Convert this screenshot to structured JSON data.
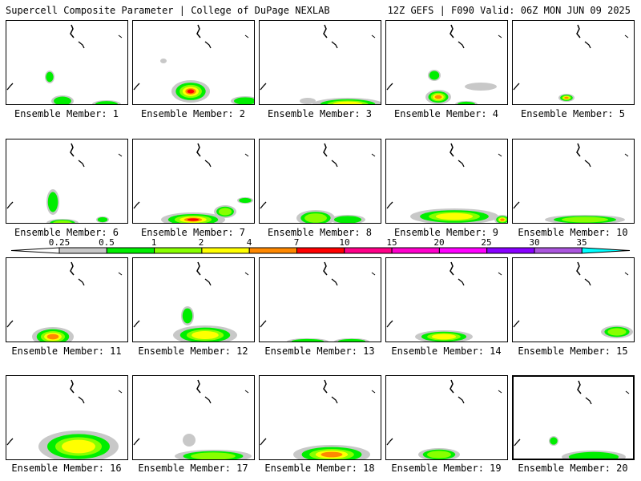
{
  "header": {
    "left": "Supercell Composite Parameter | College of DuPage NEXLAB",
    "right": "12Z GEFS | F090 Valid: 06Z MON JUN 09 2025"
  },
  "legend": {
    "ticks": [
      "0.25",
      "0.5",
      "1",
      "2",
      "4",
      "7",
      "10",
      "15",
      "20",
      "25",
      "30",
      "35"
    ],
    "colors": [
      "#c8c8c8",
      "#00ee00",
      "#88ff00",
      "#ffff00",
      "#ff8800",
      "#ff0000",
      "#ff0088",
      "#ff00cc",
      "#ff00ff",
      "#8800ff",
      "#aa55dd",
      "#00ffff"
    ],
    "under_color": "#ffffff",
    "over_color": "#00ffff"
  },
  "members": [
    {
      "label": "Ensemble Member: 1",
      "selected": false
    },
    {
      "label": "Ensemble Member: 2",
      "selected": false
    },
    {
      "label": "Ensemble Member: 3",
      "selected": false
    },
    {
      "label": "Ensemble Member: 4",
      "selected": false
    },
    {
      "label": "Ensemble Member: 5",
      "selected": false
    },
    {
      "label": "Ensemble Member: 6",
      "selected": false
    },
    {
      "label": "Ensemble Member: 7",
      "selected": false
    },
    {
      "label": "Ensemble Member: 8",
      "selected": false
    },
    {
      "label": "Ensemble Member: 9",
      "selected": false
    },
    {
      "label": "Ensemble Member: 10",
      "selected": false
    },
    {
      "label": "Ensemble Member: 11",
      "selected": false
    },
    {
      "label": "Ensemble Member: 12",
      "selected": false
    },
    {
      "label": "Ensemble Member: 13",
      "selected": false
    },
    {
      "label": "Ensemble Member: 14",
      "selected": false
    },
    {
      "label": "Ensemble Member: 15",
      "selected": false
    },
    {
      "label": "Ensemble Member: 16",
      "selected": false
    },
    {
      "label": "Ensemble Member: 17",
      "selected": false
    },
    {
      "label": "Ensemble Member: 18",
      "selected": false
    },
    {
      "label": "Ensemble Member: 19",
      "selected": false
    },
    {
      "label": "Ensemble Member: 20",
      "selected": true
    }
  ]
}
